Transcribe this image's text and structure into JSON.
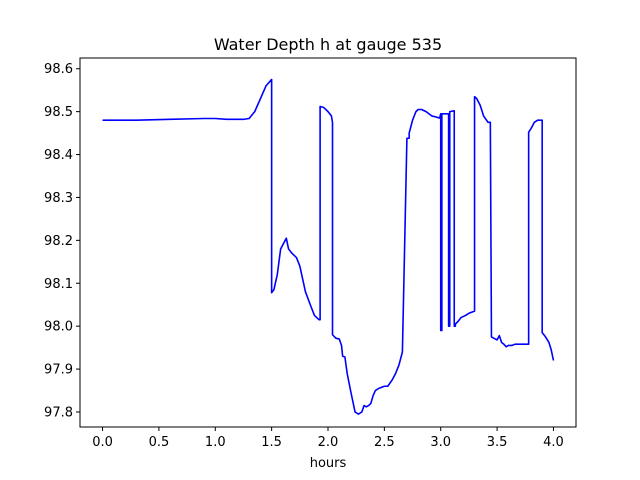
{
  "chart_data": {
    "type": "line",
    "title": "Water Depth h at gauge 535",
    "xlabel": "hours",
    "ylabel": "",
    "xlim": [
      -0.2,
      4.2
    ],
    "ylim": [
      97.765,
      98.625
    ],
    "xticks": [
      0.0,
      0.5,
      1.0,
      1.5,
      2.0,
      2.5,
      3.0,
      3.5,
      4.0
    ],
    "xtick_labels": [
      "0.0",
      "0.5",
      "1.0",
      "1.5",
      "2.0",
      "2.5",
      "3.0",
      "3.5",
      "4.0"
    ],
    "yticks": [
      97.8,
      97.9,
      98.0,
      98.1,
      98.2,
      98.3,
      98.4,
      98.5,
      98.6
    ],
    "ytick_labels": [
      "97.8",
      "97.9",
      "98.0",
      "98.1",
      "98.2",
      "98.3",
      "98.4",
      "98.5",
      "98.6"
    ],
    "grid": false,
    "series": [
      {
        "color": "#0000ff",
        "x": [
          0.0,
          0.3,
          0.6,
          0.9,
          1.0,
          1.1,
          1.25,
          1.3,
          1.35,
          1.4,
          1.45,
          1.5,
          1.5,
          1.52,
          1.55,
          1.58,
          1.6,
          1.63,
          1.65,
          1.68,
          1.72,
          1.75,
          1.8,
          1.85,
          1.88,
          1.92,
          1.93,
          1.93,
          1.96,
          2.0,
          2.03,
          2.04,
          2.04,
          2.07,
          2.1,
          2.12,
          2.13,
          2.15,
          2.17,
          2.2,
          2.22,
          2.24,
          2.27,
          2.3,
          2.32,
          2.34,
          2.36,
          2.38,
          2.4,
          2.42,
          2.45,
          2.48,
          2.5,
          2.53,
          2.57,
          2.6,
          2.63,
          2.66,
          2.7,
          2.72,
          2.72,
          2.75,
          2.78,
          2.8,
          2.83,
          2.87,
          2.92,
          2.95,
          2.99,
          3.0,
          3.0,
          3.01,
          3.01,
          3.02,
          3.07,
          3.07,
          3.08,
          3.08,
          3.12,
          3.12,
          3.13,
          3.13,
          3.15,
          3.18,
          3.22,
          3.25,
          3.3,
          3.3,
          3.32,
          3.35,
          3.38,
          3.42,
          3.44,
          3.45,
          3.45,
          3.47,
          3.5,
          3.52,
          3.54,
          3.56,
          3.58,
          3.6,
          3.63,
          3.66,
          3.7,
          3.74,
          3.78,
          3.78,
          3.8,
          3.83,
          3.86,
          3.88,
          3.9,
          3.9,
          3.93,
          3.96,
          3.98,
          4.0
        ],
        "y": [
          98.48,
          98.48,
          98.482,
          98.484,
          98.484,
          98.482,
          98.482,
          98.484,
          98.5,
          98.53,
          98.56,
          98.575,
          98.078,
          98.085,
          98.12,
          98.18,
          98.19,
          98.205,
          98.18,
          98.17,
          98.16,
          98.14,
          98.08,
          98.045,
          98.025,
          98.015,
          98.015,
          98.512,
          98.51,
          98.5,
          98.49,
          98.475,
          97.98,
          97.972,
          97.97,
          97.955,
          97.93,
          97.928,
          97.89,
          97.85,
          97.825,
          97.8,
          97.795,
          97.8,
          97.815,
          97.812,
          97.815,
          97.82,
          97.838,
          97.85,
          97.855,
          97.858,
          97.86,
          97.86,
          97.875,
          97.89,
          97.91,
          97.94,
          98.438,
          98.438,
          98.45,
          98.48,
          98.5,
          98.505,
          98.505,
          98.5,
          98.49,
          98.488,
          98.485,
          98.495,
          97.99,
          97.99,
          98.495,
          98.495,
          98.495,
          98.0,
          98.0,
          98.5,
          98.502,
          98.0,
          98.0,
          98.005,
          98.01,
          98.02,
          98.025,
          98.03,
          98.035,
          98.535,
          98.53,
          98.515,
          98.49,
          98.475,
          98.475,
          97.975,
          97.975,
          97.972,
          97.968,
          97.978,
          97.962,
          97.958,
          97.952,
          97.955,
          97.955,
          97.958,
          97.958,
          97.958,
          97.958,
          98.452,
          98.46,
          98.475,
          98.48,
          98.48,
          98.48,
          97.985,
          97.975,
          97.962,
          97.945,
          97.92
        ]
      }
    ]
  }
}
